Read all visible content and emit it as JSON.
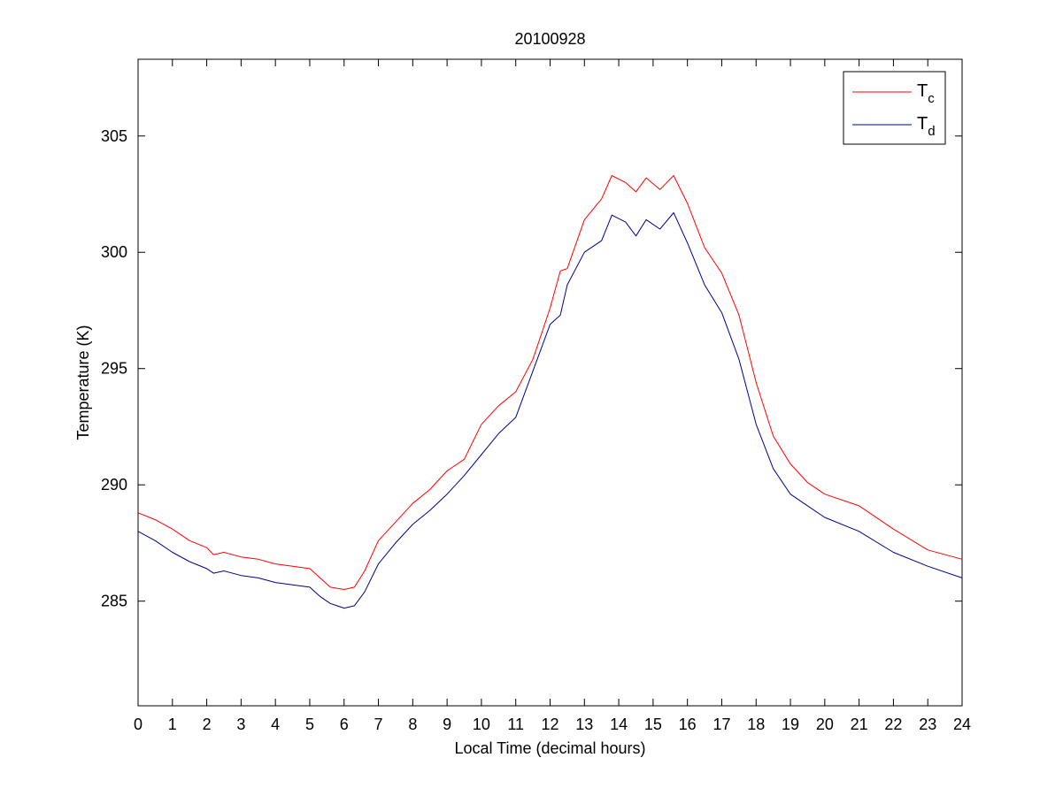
{
  "chart_data": {
    "type": "line",
    "title": "20100928",
    "xlabel": "Local Time (decimal hours)",
    "ylabel": "Temperature (K)",
    "xlim": [
      0,
      24
    ],
    "ylim": [
      280.5,
      308.3
    ],
    "xticks": [
      0,
      1,
      2,
      3,
      4,
      5,
      6,
      7,
      8,
      9,
      10,
      11,
      12,
      13,
      14,
      15,
      16,
      17,
      18,
      19,
      20,
      21,
      22,
      23,
      24
    ],
    "yticks": [
      285,
      290,
      295,
      300,
      305
    ],
    "grid": false,
    "legend_position": "top-right",
    "series": [
      {
        "name": "T_c",
        "legend_main": "T",
        "legend_sub": "c",
        "color": "#ff0000",
        "x": [
          0,
          0.5,
          1,
          1.5,
          2,
          2.2,
          2.5,
          3,
          3.5,
          4,
          4.5,
          5,
          5.3,
          5.6,
          6,
          6.3,
          6.6,
          7,
          7.5,
          8,
          8.5,
          9,
          9.5,
          10,
          10.5,
          11,
          11.5,
          12,
          12.3,
          12.5,
          13,
          13.5,
          13.8,
          14.2,
          14.5,
          14.8,
          15.2,
          15.6,
          16,
          16.5,
          17,
          17.5,
          18,
          18.5,
          19,
          19.5,
          20,
          21,
          22,
          23,
          24
        ],
        "y": [
          288.8,
          288.5,
          288.1,
          287.6,
          287.3,
          287.0,
          287.1,
          286.9,
          286.8,
          286.6,
          286.5,
          286.4,
          286.0,
          285.6,
          285.5,
          285.6,
          286.3,
          287.6,
          288.4,
          289.2,
          289.8,
          290.6,
          291.1,
          292.6,
          293.4,
          294.0,
          295.4,
          297.6,
          299.2,
          299.3,
          301.4,
          302.3,
          303.3,
          303.0,
          302.6,
          303.2,
          302.7,
          303.3,
          302.1,
          300.2,
          299.1,
          297.3,
          294.4,
          292.1,
          290.9,
          290.1,
          289.6,
          289.1,
          288.1,
          287.2,
          286.8
        ]
      },
      {
        "name": "T_d",
        "legend_main": "T",
        "legend_sub": "d",
        "color": "#00008b",
        "x": [
          0,
          0.5,
          1,
          1.5,
          2,
          2.2,
          2.5,
          3,
          3.5,
          4,
          4.5,
          5,
          5.3,
          5.6,
          6,
          6.3,
          6.6,
          7,
          7.5,
          8,
          8.5,
          9,
          9.5,
          10,
          10.5,
          11,
          11.5,
          12,
          12.3,
          12.5,
          13,
          13.5,
          13.8,
          14.2,
          14.5,
          14.8,
          15.2,
          15.6,
          16,
          16.5,
          17,
          17.5,
          18,
          18.5,
          19,
          19.5,
          20,
          21,
          22,
          23,
          24
        ],
        "y": [
          288.0,
          287.6,
          287.1,
          286.7,
          286.4,
          286.2,
          286.3,
          286.1,
          286.0,
          285.8,
          285.7,
          285.6,
          285.2,
          284.9,
          284.7,
          284.8,
          285.4,
          286.6,
          287.5,
          288.3,
          288.9,
          289.6,
          290.4,
          291.3,
          292.2,
          292.9,
          294.9,
          296.9,
          297.3,
          298.6,
          300.0,
          300.5,
          301.6,
          301.3,
          300.7,
          301.4,
          301.0,
          301.7,
          300.4,
          298.6,
          297.4,
          295.4,
          292.6,
          290.7,
          289.6,
          289.1,
          288.6,
          288.0,
          287.1,
          286.5,
          286.0
        ]
      }
    ]
  }
}
